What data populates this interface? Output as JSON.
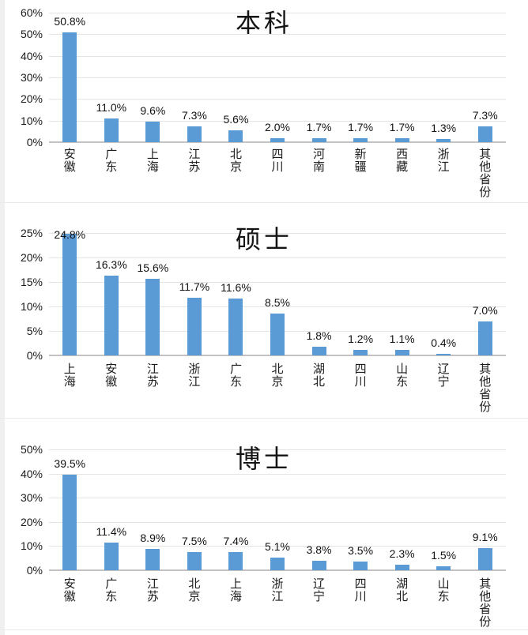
{
  "style": {
    "bar_color": "#5B9BD5",
    "gridline_color": "#e4e4e4",
    "axis_line_color": "#c3c3c3",
    "text_color": "#1a1a1a",
    "background": "#ffffff"
  },
  "chart_data": [
    {
      "type": "bar",
      "title": "本科",
      "categories": [
        "安徽",
        "广东",
        "上海",
        "江苏",
        "北京",
        "四川",
        "河南",
        "新疆",
        "西藏",
        "浙江",
        "其他省份"
      ],
      "values": [
        50.8,
        11.0,
        9.6,
        7.3,
        5.6,
        2.0,
        1.7,
        1.7,
        1.7,
        1.3,
        7.3
      ],
      "labels": [
        "50.8%",
        "11.0%",
        "9.6%",
        "7.3%",
        "5.6%",
        "2.0%",
        "1.7%",
        "1.7%",
        "1.7%",
        "1.3%",
        "7.3%"
      ],
      "ylim": [
        0,
        60
      ],
      "yticks": [
        "60%",
        "50%",
        "40%",
        "30%",
        "20%",
        "10%",
        "0%"
      ],
      "xlabel": "",
      "ylabel": "",
      "legend_position": "none",
      "grid": "horizontal"
    },
    {
      "type": "bar",
      "title": "硕士",
      "categories": [
        "上海",
        "安徽",
        "江苏",
        "浙江",
        "广东",
        "北京",
        "湖北",
        "四川",
        "山东",
        "辽宁",
        "其他省份"
      ],
      "values": [
        24.8,
        16.3,
        15.6,
        11.7,
        11.6,
        8.5,
        1.8,
        1.2,
        1.1,
        0.4,
        7.0
      ],
      "labels": [
        "24.8%",
        "16.3%",
        "15.6%",
        "11.7%",
        "11.6%",
        "8.5%",
        "1.8%",
        "1.2%",
        "1.1%",
        "0.4%",
        "7.0%"
      ],
      "ylim": [
        0,
        25
      ],
      "yticks": [
        "25%",
        "20%",
        "15%",
        "10%",
        "5%",
        "0%"
      ],
      "xlabel": "",
      "ylabel": "",
      "legend_position": "none",
      "grid": "horizontal"
    },
    {
      "type": "bar",
      "title": "博士",
      "categories": [
        "安徽",
        "广东",
        "江苏",
        "北京",
        "上海",
        "浙江",
        "辽宁",
        "四川",
        "湖北",
        "山东",
        "其他省份"
      ],
      "values": [
        39.5,
        11.4,
        8.9,
        7.5,
        7.4,
        5.1,
        3.8,
        3.5,
        2.3,
        1.5,
        9.1
      ],
      "labels": [
        "39.5%",
        "11.4%",
        "8.9%",
        "7.5%",
        "7.4%",
        "5.1%",
        "3.8%",
        "3.5%",
        "2.3%",
        "1.5%",
        "9.1%"
      ],
      "ylim": [
        0,
        50
      ],
      "yticks": [
        "50%",
        "40%",
        "30%",
        "20%",
        "10%",
        "0%"
      ],
      "xlabel": "",
      "ylabel": "",
      "legend_position": "none",
      "grid": "horizontal"
    }
  ]
}
